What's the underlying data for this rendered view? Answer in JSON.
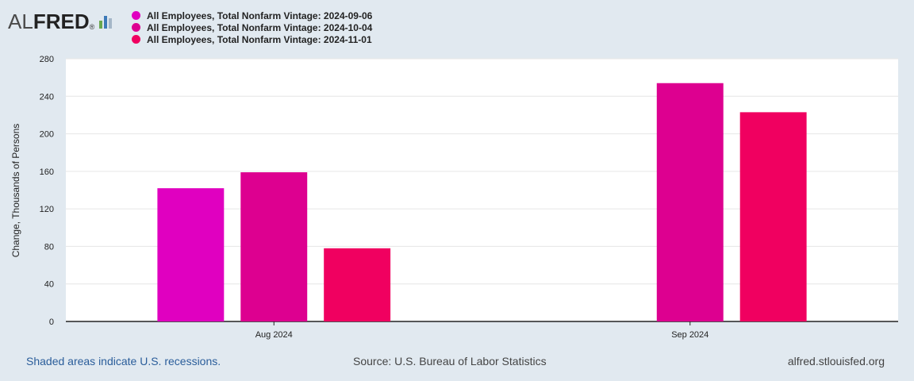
{
  "header": {
    "logo_al": "AL",
    "logo_fred": "FRED",
    "logo_reg": "®"
  },
  "legend": [
    {
      "label": "All Employees, Total Nonfarm Vintage: 2024-09-06",
      "color": "#e000c0"
    },
    {
      "label": "All Employees, Total Nonfarm Vintage: 2024-10-04",
      "color": "#dd0090"
    },
    {
      "label": "All Employees, Total Nonfarm Vintage: 2024-11-01",
      "color": "#f00060"
    }
  ],
  "chart_data": {
    "type": "bar",
    "categories": [
      "Aug 2024",
      "Sep 2024"
    ],
    "series": [
      {
        "name": "All Employees, Total Nonfarm Vintage: 2024-09-06",
        "values": [
          142,
          null
        ],
        "color": "#e000c0"
      },
      {
        "name": "All Employees, Total Nonfarm Vintage: 2024-10-04",
        "values": [
          159,
          254
        ],
        "color": "#dd0090"
      },
      {
        "name": "All Employees, Total Nonfarm Vintage: 2024-11-01",
        "values": [
          78,
          223
        ],
        "color": "#f00060"
      }
    ],
    "yticks": [
      0,
      40,
      80,
      120,
      160,
      200,
      240,
      280
    ],
    "ylim": [
      0,
      280
    ],
    "ylabel": "Change, Thousands of Persons",
    "grid": true
  },
  "footer": {
    "recessions": "Shaded areas indicate U.S. recessions.",
    "source": "Source: U.S. Bureau of Labor Statistics",
    "site": "alfred.stlouisfed.org"
  }
}
